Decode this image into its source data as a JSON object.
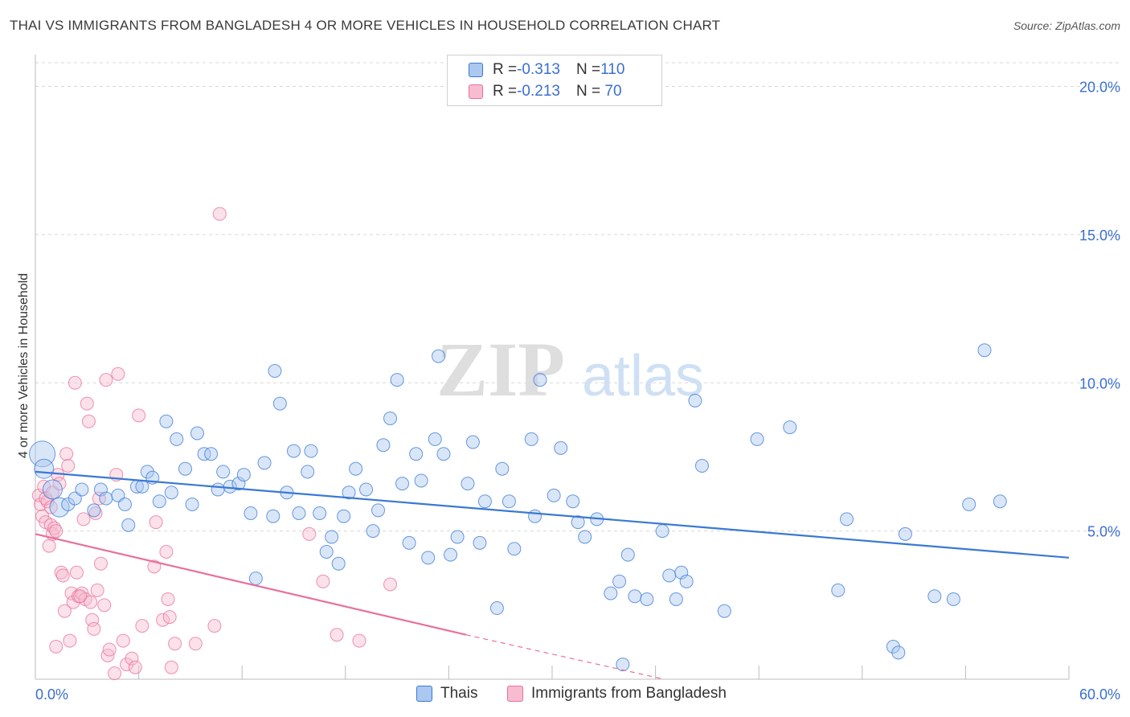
{
  "title": "THAI VS IMMIGRANTS FROM BANGLADESH 4 OR MORE VEHICLES IN HOUSEHOLD CORRELATION CHART",
  "source": "Source: ZipAtlas.com",
  "watermark": {
    "zip": "ZIP",
    "atlas": "atlas"
  },
  "colors": {
    "blue": "#3a78d4",
    "blue_fill": "#aac8f0",
    "pink": "#e8709a",
    "pink_fill": "#f7bccf",
    "axis_text": "#3a6fcf"
  },
  "legend": {
    "rows": [
      {
        "r_label": "R = ",
        "r_value": "-0.313",
        "n_label": "N = ",
        "n_value": "110",
        "series": "blue"
      },
      {
        "r_label": "R = ",
        "r_value": "-0.213",
        "n_label": "N = ",
        "n_value": " 70",
        "series": "pink"
      }
    ]
  },
  "bottom_legend": {
    "thais": "Thais",
    "bangladesh": "Immigrants from Bangladesh"
  },
  "chart_data": {
    "type": "scatter",
    "ylabel": "4 or more Vehicles in Household",
    "x_tick_labels": [
      "0.0%",
      "60.0%"
    ],
    "y_tick_labels": [
      "5.0%",
      "10.0%",
      "15.0%",
      "20.0%"
    ],
    "xlim": [
      0,
      60
    ],
    "ylim": [
      0,
      20.8
    ],
    "y_ticks": [
      5,
      10,
      15,
      20
    ],
    "grid": true,
    "series": [
      {
        "name": "Thais",
        "color": "#3a78d4",
        "trend": {
          "x": [
            0,
            60
          ],
          "y": [
            7.0,
            4.1
          ]
        },
        "points": [
          [
            0.4,
            7.6,
            3
          ],
          [
            0.5,
            7.1,
            2
          ],
          [
            1.0,
            6.4,
            2
          ],
          [
            1.4,
            5.8,
            2
          ],
          [
            1.9,
            5.9,
            1
          ],
          [
            2.3,
            6.1,
            1
          ],
          [
            2.7,
            6.4,
            1
          ],
          [
            3.4,
            5.7,
            1
          ],
          [
            3.8,
            6.4,
            1
          ],
          [
            4.1,
            6.1,
            1
          ],
          [
            4.8,
            6.2,
            1
          ],
          [
            5.2,
            5.9,
            1
          ],
          [
            5.4,
            5.2,
            1
          ],
          [
            5.9,
            6.5,
            1
          ],
          [
            6.2,
            6.5,
            1
          ],
          [
            6.5,
            7.0,
            1
          ],
          [
            6.8,
            6.8,
            1
          ],
          [
            7.2,
            6.0,
            1
          ],
          [
            7.6,
            8.7,
            1
          ],
          [
            7.9,
            6.3,
            1
          ],
          [
            8.2,
            8.1,
            1
          ],
          [
            8.7,
            7.1,
            1
          ],
          [
            9.1,
            5.9,
            1
          ],
          [
            9.4,
            8.3,
            1
          ],
          [
            9.8,
            7.6,
            1
          ],
          [
            10.2,
            7.6,
            1
          ],
          [
            10.6,
            6.4,
            1
          ],
          [
            10.9,
            7.0,
            1
          ],
          [
            11.3,
            6.5,
            1
          ],
          [
            11.8,
            6.6,
            1
          ],
          [
            12.1,
            6.9,
            1
          ],
          [
            12.5,
            5.6,
            1
          ],
          [
            12.8,
            3.4,
            1
          ],
          [
            13.3,
            7.3,
            1
          ],
          [
            13.8,
            5.5,
            1
          ],
          [
            13.9,
            10.4,
            1
          ],
          [
            14.2,
            9.3,
            1
          ],
          [
            14.6,
            6.3,
            1
          ],
          [
            15.0,
            7.7,
            1
          ],
          [
            15.3,
            5.6,
            1
          ],
          [
            15.8,
            7.0,
            1
          ],
          [
            16.0,
            7.7,
            1
          ],
          [
            16.5,
            5.6,
            1
          ],
          [
            16.9,
            4.3,
            1
          ],
          [
            17.2,
            4.8,
            1
          ],
          [
            17.6,
            3.9,
            1
          ],
          [
            17.9,
            5.5,
            1
          ],
          [
            18.2,
            6.3,
            1
          ],
          [
            18.6,
            7.1,
            1
          ],
          [
            19.2,
            6.4,
            1
          ],
          [
            19.6,
            5.0,
            1
          ],
          [
            19.9,
            5.7,
            1
          ],
          [
            20.2,
            7.9,
            1
          ],
          [
            20.6,
            8.8,
            1
          ],
          [
            21.0,
            10.1,
            1
          ],
          [
            21.3,
            6.6,
            1
          ],
          [
            21.7,
            4.6,
            1
          ],
          [
            22.1,
            7.6,
            1
          ],
          [
            22.4,
            6.7,
            1
          ],
          [
            22.8,
            4.1,
            1
          ],
          [
            23.2,
            8.1,
            1
          ],
          [
            23.4,
            10.9,
            1
          ],
          [
            23.7,
            7.6,
            1
          ],
          [
            24.1,
            4.2,
            1
          ],
          [
            24.5,
            4.8,
            1
          ],
          [
            25.1,
            6.6,
            1
          ],
          [
            25.4,
            8.0,
            1
          ],
          [
            25.8,
            4.6,
            1
          ],
          [
            26.1,
            6.0,
            1
          ],
          [
            26.8,
            2.4,
            1
          ],
          [
            27.1,
            7.1,
            1
          ],
          [
            27.5,
            6.0,
            1
          ],
          [
            27.8,
            4.4,
            1
          ],
          [
            28.8,
            8.1,
            1
          ],
          [
            29.0,
            5.5,
            1
          ],
          [
            29.3,
            10.1,
            1
          ],
          [
            30.1,
            6.2,
            1
          ],
          [
            30.5,
            7.8,
            1
          ],
          [
            31.2,
            6.0,
            1
          ],
          [
            31.5,
            5.3,
            1
          ],
          [
            31.9,
            4.8,
            1
          ],
          [
            32.6,
            5.4,
            1
          ],
          [
            33.4,
            2.9,
            1
          ],
          [
            33.9,
            3.3,
            1
          ],
          [
            34.1,
            0.5,
            1
          ],
          [
            34.4,
            4.2,
            1
          ],
          [
            34.8,
            2.8,
            1
          ],
          [
            35.5,
            2.7,
            1
          ],
          [
            36.4,
            5.0,
            1
          ],
          [
            36.8,
            3.5,
            1
          ],
          [
            37.2,
            2.7,
            1
          ],
          [
            37.5,
            3.6,
            1
          ],
          [
            37.8,
            3.3,
            1
          ],
          [
            38.3,
            9.4,
            1
          ],
          [
            38.7,
            7.2,
            1
          ],
          [
            40.0,
            2.3,
            1
          ],
          [
            41.9,
            8.1,
            1
          ],
          [
            43.8,
            8.5,
            1
          ],
          [
            46.6,
            3.0,
            1
          ],
          [
            47.1,
            5.4,
            1
          ],
          [
            49.8,
            1.1,
            1
          ],
          [
            50.1,
            0.9,
            1
          ],
          [
            50.5,
            4.9,
            1
          ],
          [
            52.2,
            2.8,
            1
          ],
          [
            53.3,
            2.7,
            1
          ],
          [
            54.2,
            5.9,
            1
          ],
          [
            55.1,
            11.1,
            1
          ],
          [
            56.0,
            6.0,
            1
          ]
        ]
      },
      {
        "name": "Immigrants from Bangladesh",
        "color": "#e8709a",
        "trend": {
          "x": [
            0,
            25
          ],
          "y": [
            4.9,
            1.5
          ]
        },
        "trend_dashed": {
          "x": [
            25,
            36.5
          ],
          "y": [
            1.5,
            0.0
          ]
        },
        "points": [
          [
            0.2,
            6.2,
            1
          ],
          [
            0.3,
            5.9,
            1
          ],
          [
            0.4,
            5.5,
            1
          ],
          [
            0.5,
            6.5,
            1
          ],
          [
            0.6,
            5.3,
            1
          ],
          [
            0.7,
            6.0,
            1
          ],
          [
            0.8,
            4.5,
            1
          ],
          [
            0.9,
            5.2,
            1
          ],
          [
            1.0,
            4.9,
            1
          ],
          [
            1.1,
            5.1,
            1
          ],
          [
            1.2,
            5.0,
            1
          ],
          [
            1.3,
            6.9,
            1
          ],
          [
            1.2,
            1.1,
            1
          ],
          [
            1.5,
            3.6,
            1
          ],
          [
            1.6,
            3.5,
            1
          ],
          [
            1.7,
            2.3,
            1
          ],
          [
            1.8,
            7.6,
            1
          ],
          [
            1.9,
            7.2,
            1
          ],
          [
            2.0,
            1.3,
            1
          ],
          [
            2.1,
            2.9,
            1
          ],
          [
            2.2,
            2.6,
            1
          ],
          [
            2.3,
            10.0,
            1
          ],
          [
            2.4,
            3.6,
            1
          ],
          [
            2.5,
            2.8,
            1
          ],
          [
            2.7,
            2.9,
            1
          ],
          [
            2.8,
            5.4,
            1
          ],
          [
            2.9,
            2.7,
            1
          ],
          [
            3.0,
            9.3,
            1
          ],
          [
            3.1,
            8.7,
            1
          ],
          [
            3.2,
            2.6,
            1
          ],
          [
            3.3,
            2.0,
            1
          ],
          [
            3.4,
            1.7,
            1
          ],
          [
            3.5,
            5.6,
            1
          ],
          [
            3.6,
            3.0,
            1
          ],
          [
            3.7,
            6.1,
            1
          ],
          [
            3.8,
            3.9,
            1
          ],
          [
            4.0,
            2.5,
            1
          ],
          [
            4.1,
            10.1,
            1
          ],
          [
            4.2,
            0.8,
            1
          ],
          [
            4.3,
            1.0,
            1
          ],
          [
            4.6,
            0.2,
            1
          ],
          [
            4.7,
            6.9,
            1
          ],
          [
            4.8,
            10.3,
            1
          ],
          [
            5.1,
            1.3,
            1
          ],
          [
            5.3,
            0.5,
            1
          ],
          [
            5.6,
            0.7,
            1
          ],
          [
            5.8,
            0.4,
            1
          ],
          [
            6.0,
            8.9,
            1
          ],
          [
            6.2,
            1.8,
            1
          ],
          [
            6.9,
            3.8,
            1
          ],
          [
            7.0,
            5.3,
            1
          ],
          [
            7.4,
            2.0,
            1
          ],
          [
            7.6,
            4.3,
            1
          ],
          [
            7.7,
            2.7,
            1
          ],
          [
            7.8,
            2.1,
            1
          ],
          [
            7.9,
            0.4,
            1
          ],
          [
            8.1,
            1.2,
            1
          ],
          [
            9.3,
            1.2,
            1
          ],
          [
            10.4,
            1.8,
            1
          ],
          [
            10.7,
            15.7,
            1
          ],
          [
            15.9,
            4.9,
            1
          ],
          [
            16.7,
            3.3,
            1
          ],
          [
            17.5,
            1.5,
            1
          ],
          [
            18.8,
            1.3,
            1
          ],
          [
            20.6,
            3.2,
            1
          ],
          [
            0.6,
            6.1,
            1
          ],
          [
            1.0,
            6.3,
            1
          ],
          [
            1.4,
            6.6,
            1
          ],
          [
            0.9,
            5.8,
            1
          ],
          [
            2.6,
            2.8,
            1
          ]
        ]
      }
    ]
  }
}
